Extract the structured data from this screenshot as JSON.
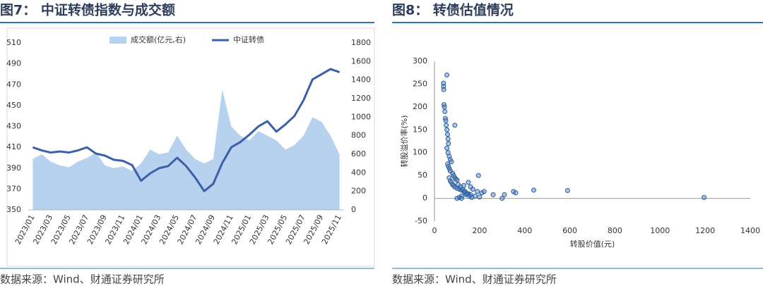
{
  "chart_data": [
    {
      "type": "line",
      "title": "图7： 中证转债指数与成交额",
      "source": "数据来源：Wind、财通证券研究所",
      "categories": [
        "2023/01",
        null,
        "2023/03",
        null,
        "2023/05",
        null,
        "2023/07",
        null,
        "2023/09",
        null,
        "2023/11",
        null,
        "2024/01",
        null,
        "2024/03",
        null,
        "2024/05",
        null,
        "2024/07",
        null,
        "2024/09",
        null,
        "2024/11",
        null,
        "2025/01",
        null,
        "2025/03",
        null,
        "2025/05",
        null,
        "2025/07",
        null,
        "2025/09",
        null,
        "2025/11"
      ],
      "ylim": [
        350,
        510
      ],
      "yticks": [
        350,
        370,
        390,
        410,
        430,
        450,
        470,
        490,
        510
      ],
      "y2lim": [
        0,
        1800
      ],
      "y2ticks": [
        0,
        200,
        400,
        600,
        800,
        1000,
        1200,
        1400,
        1600,
        1800
      ],
      "legend": "top",
      "series": [
        {
          "name": "成交额(亿元,右)",
          "type": "area",
          "axis": "y2",
          "color": "#b7d2ee",
          "values": [
            550,
            600,
            520,
            480,
            460,
            520,
            560,
            620,
            480,
            450,
            470,
            420,
            500,
            650,
            600,
            620,
            800,
            650,
            550,
            500,
            550,
            1300,
            900,
            800,
            750,
            850,
            800,
            750,
            650,
            700,
            800,
            1000,
            950,
            800,
            600
          ]
        },
        {
          "name": "中证转债",
          "type": "line",
          "color": "#3b5fa8",
          "values": [
            410,
            407,
            405,
            406,
            405,
            407,
            410,
            404,
            402,
            398,
            397,
            393,
            378,
            385,
            390,
            392,
            400,
            392,
            381,
            368,
            375,
            395,
            410,
            415,
            422,
            430,
            435,
            425,
            432,
            440,
            455,
            475,
            480,
            485,
            482
          ]
        }
      ]
    },
    {
      "type": "scatter",
      "title": "图8： 转债估值情况",
      "source": "数据来源：Wind、财通证券研究所",
      "xlabel": "转股价值(元)",
      "ylabel": "转股溢价率(%)",
      "xlim": [
        0,
        1400
      ],
      "xticks": [
        0,
        200,
        400,
        600,
        800,
        1000,
        1200,
        1400
      ],
      "ylim": [
        -50,
        300
      ],
      "yticks": [
        -50,
        0,
        50,
        100,
        150,
        200,
        250,
        300
      ],
      "color": "#4a7fc0",
      "x": [
        55,
        40,
        40,
        41,
        42,
        44,
        46,
        48,
        50,
        52,
        90,
        55,
        58,
        60,
        62,
        55,
        60,
        65,
        70,
        75,
        58,
        62,
        66,
        70,
        80,
        85,
        90,
        95,
        100,
        65,
        70,
        75,
        80,
        85,
        90,
        100,
        110,
        120,
        130,
        140,
        150,
        160,
        180,
        200,
        210,
        190,
        170,
        160,
        140,
        120,
        110,
        100,
        105,
        115,
        125,
        135,
        145,
        155,
        165,
        195,
        220,
        260,
        300,
        310,
        350,
        360,
        440,
        590,
        1195,
        150,
        130,
        120
      ],
      "values": [
        270,
        252,
        245,
        238,
        205,
        200,
        190,
        175,
        170,
        160,
        160,
        150,
        140,
        130,
        120,
        110,
        100,
        92,
        85,
        80,
        75,
        70,
        65,
        60,
        55,
        50,
        45,
        42,
        40,
        45,
        38,
        35,
        30,
        28,
        25,
        22,
        20,
        18,
        15,
        12,
        10,
        8,
        5,
        3,
        12,
        15,
        20,
        25,
        8,
        5,
        2,
        0,
        30,
        25,
        20,
        15,
        10,
        5,
        2,
        50,
        15,
        8,
        0,
        8,
        15,
        12,
        18,
        17,
        2,
        35,
        28,
        0
      ]
    }
  ]
}
